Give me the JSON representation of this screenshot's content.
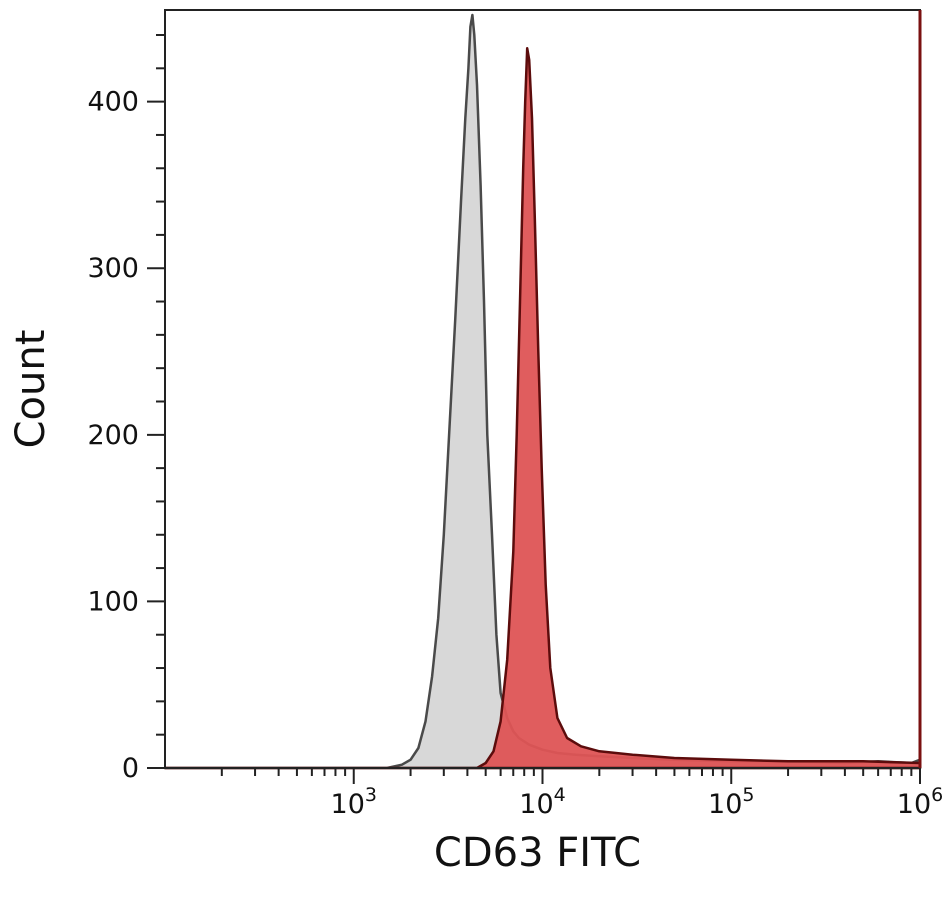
{
  "chart_data": {
    "type": "area",
    "title": "",
    "xlabel": "CD63 FITC",
    "ylabel": "Count",
    "x_scale": "log",
    "xlim": [
      100,
      1000000
    ],
    "ylim": [
      0,
      455
    ],
    "x_ticks": [
      {
        "value": 1000,
        "base": "10",
        "exp": "3"
      },
      {
        "value": 10000,
        "base": "10",
        "exp": "4"
      },
      {
        "value": 100000,
        "base": "10",
        "exp": "5"
      },
      {
        "value": 1000000,
        "base": "10",
        "exp": "6"
      }
    ],
    "y_ticks": [
      {
        "value": 0,
        "label": "0"
      },
      {
        "value": 100,
        "label": "100"
      },
      {
        "value": 200,
        "label": "200"
      },
      {
        "value": 300,
        "label": "300"
      },
      {
        "value": 400,
        "label": "400"
      }
    ],
    "grid": false,
    "series": [
      {
        "fill": "#d6d6d6",
        "stroke": "#4a4a4a",
        "points": [
          [
            100,
            0
          ],
          [
            1500,
            0
          ],
          [
            1800,
            2
          ],
          [
            2000,
            5
          ],
          [
            2200,
            12
          ],
          [
            2400,
            28
          ],
          [
            2600,
            55
          ],
          [
            2800,
            90
          ],
          [
            3000,
            140
          ],
          [
            3200,
            200
          ],
          [
            3450,
            270
          ],
          [
            3700,
            340
          ],
          [
            3900,
            390
          ],
          [
            4050,
            420
          ],
          [
            4150,
            445
          ],
          [
            4250,
            452
          ],
          [
            4350,
            440
          ],
          [
            4500,
            410
          ],
          [
            4700,
            350
          ],
          [
            4900,
            280
          ],
          [
            5100,
            200
          ],
          [
            5400,
            140
          ],
          [
            5700,
            80
          ],
          [
            6000,
            45
          ],
          [
            6500,
            30
          ],
          [
            7000,
            22
          ],
          [
            7500,
            18
          ],
          [
            8500,
            14
          ],
          [
            10000,
            11
          ],
          [
            12000,
            9
          ],
          [
            15000,
            8
          ],
          [
            20000,
            7
          ],
          [
            30000,
            6
          ],
          [
            50000,
            5
          ],
          [
            100000,
            4
          ],
          [
            200000,
            4
          ],
          [
            400000,
            3
          ],
          [
            600000,
            4
          ],
          [
            900000,
            3
          ],
          [
            1000000,
            5
          ]
        ]
      },
      {
        "fill": "#de5455",
        "stroke": "#5c0c0c",
        "points": [
          [
            100,
            0
          ],
          [
            4500,
            0
          ],
          [
            5000,
            3
          ],
          [
            5500,
            10
          ],
          [
            6000,
            28
          ],
          [
            6500,
            65
          ],
          [
            7000,
            130
          ],
          [
            7300,
            200
          ],
          [
            7600,
            280
          ],
          [
            7900,
            360
          ],
          [
            8100,
            400
          ],
          [
            8300,
            432
          ],
          [
            8500,
            425
          ],
          [
            8800,
            390
          ],
          [
            9100,
            330
          ],
          [
            9500,
            250
          ],
          [
            9900,
            180
          ],
          [
            10400,
            110
          ],
          [
            11000,
            60
          ],
          [
            12000,
            30
          ],
          [
            13500,
            18
          ],
          [
            16000,
            13
          ],
          [
            20000,
            10
          ],
          [
            30000,
            8
          ],
          [
            50000,
            6
          ],
          [
            100000,
            5
          ],
          [
            200000,
            4
          ],
          [
            500000,
            4
          ],
          [
            1000000,
            3
          ]
        ]
      }
    ]
  }
}
